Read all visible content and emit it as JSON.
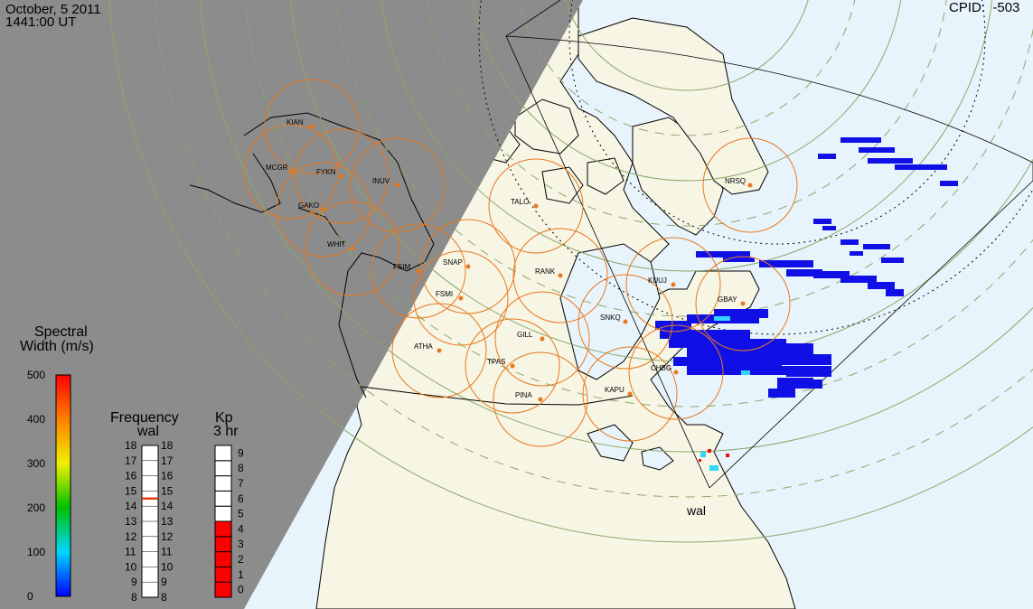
{
  "header": {
    "date": "October, 5 2011",
    "time": "1441:00 UT",
    "cpid_label": "CPID:",
    "cpid_value": "-503"
  },
  "radar_label": "wal",
  "colors": {
    "night": "#8c8c8c",
    "ocean": "#e8f4fb",
    "land": "#f7f5e4",
    "fov_circle": "#e8781e",
    "station": "#e8781e",
    "grid": "#8aa86a",
    "echo": "#1010e6"
  },
  "stations": [
    {
      "code": "KIAN"
    },
    {
      "code": "MCGR"
    },
    {
      "code": "FYKN"
    },
    {
      "code": "INUV"
    },
    {
      "code": "GAKO"
    },
    {
      "code": "WHIT"
    },
    {
      "code": "FSIM"
    },
    {
      "code": "SNAP"
    },
    {
      "code": "FSMI"
    },
    {
      "code": "TALO"
    },
    {
      "code": "RANK"
    },
    {
      "code": "ATHA"
    },
    {
      "code": "GILL"
    },
    {
      "code": "TPAS"
    },
    {
      "code": "SNKQ"
    },
    {
      "code": "KUUJ"
    },
    {
      "code": "GBAY"
    },
    {
      "code": "CHBG"
    },
    {
      "code": "KAPU"
    },
    {
      "code": "PINA"
    },
    {
      "code": "NRSQ"
    }
  ],
  "legends": {
    "spectral": {
      "title_line1": "Spectral",
      "title_line2": "Width (m/s)",
      "min": 0,
      "max": 500,
      "ticks": [
        "0",
        "100",
        "200",
        "300",
        "400",
        "500"
      ]
    },
    "frequency": {
      "title_line1": "Frequency",
      "title_line2": "wal",
      "ticks": [
        "8",
        "9",
        "10",
        "11",
        "12",
        "13",
        "14",
        "15",
        "16",
        "17",
        "18"
      ],
      "selected_mhz": 14.5
    },
    "kp": {
      "title_line1": "Kp",
      "title_line2": "3 hr",
      "ticks": [
        "0",
        "1",
        "2",
        "3",
        "4",
        "5",
        "6",
        "7",
        "8",
        "9"
      ],
      "value": 5
    }
  }
}
